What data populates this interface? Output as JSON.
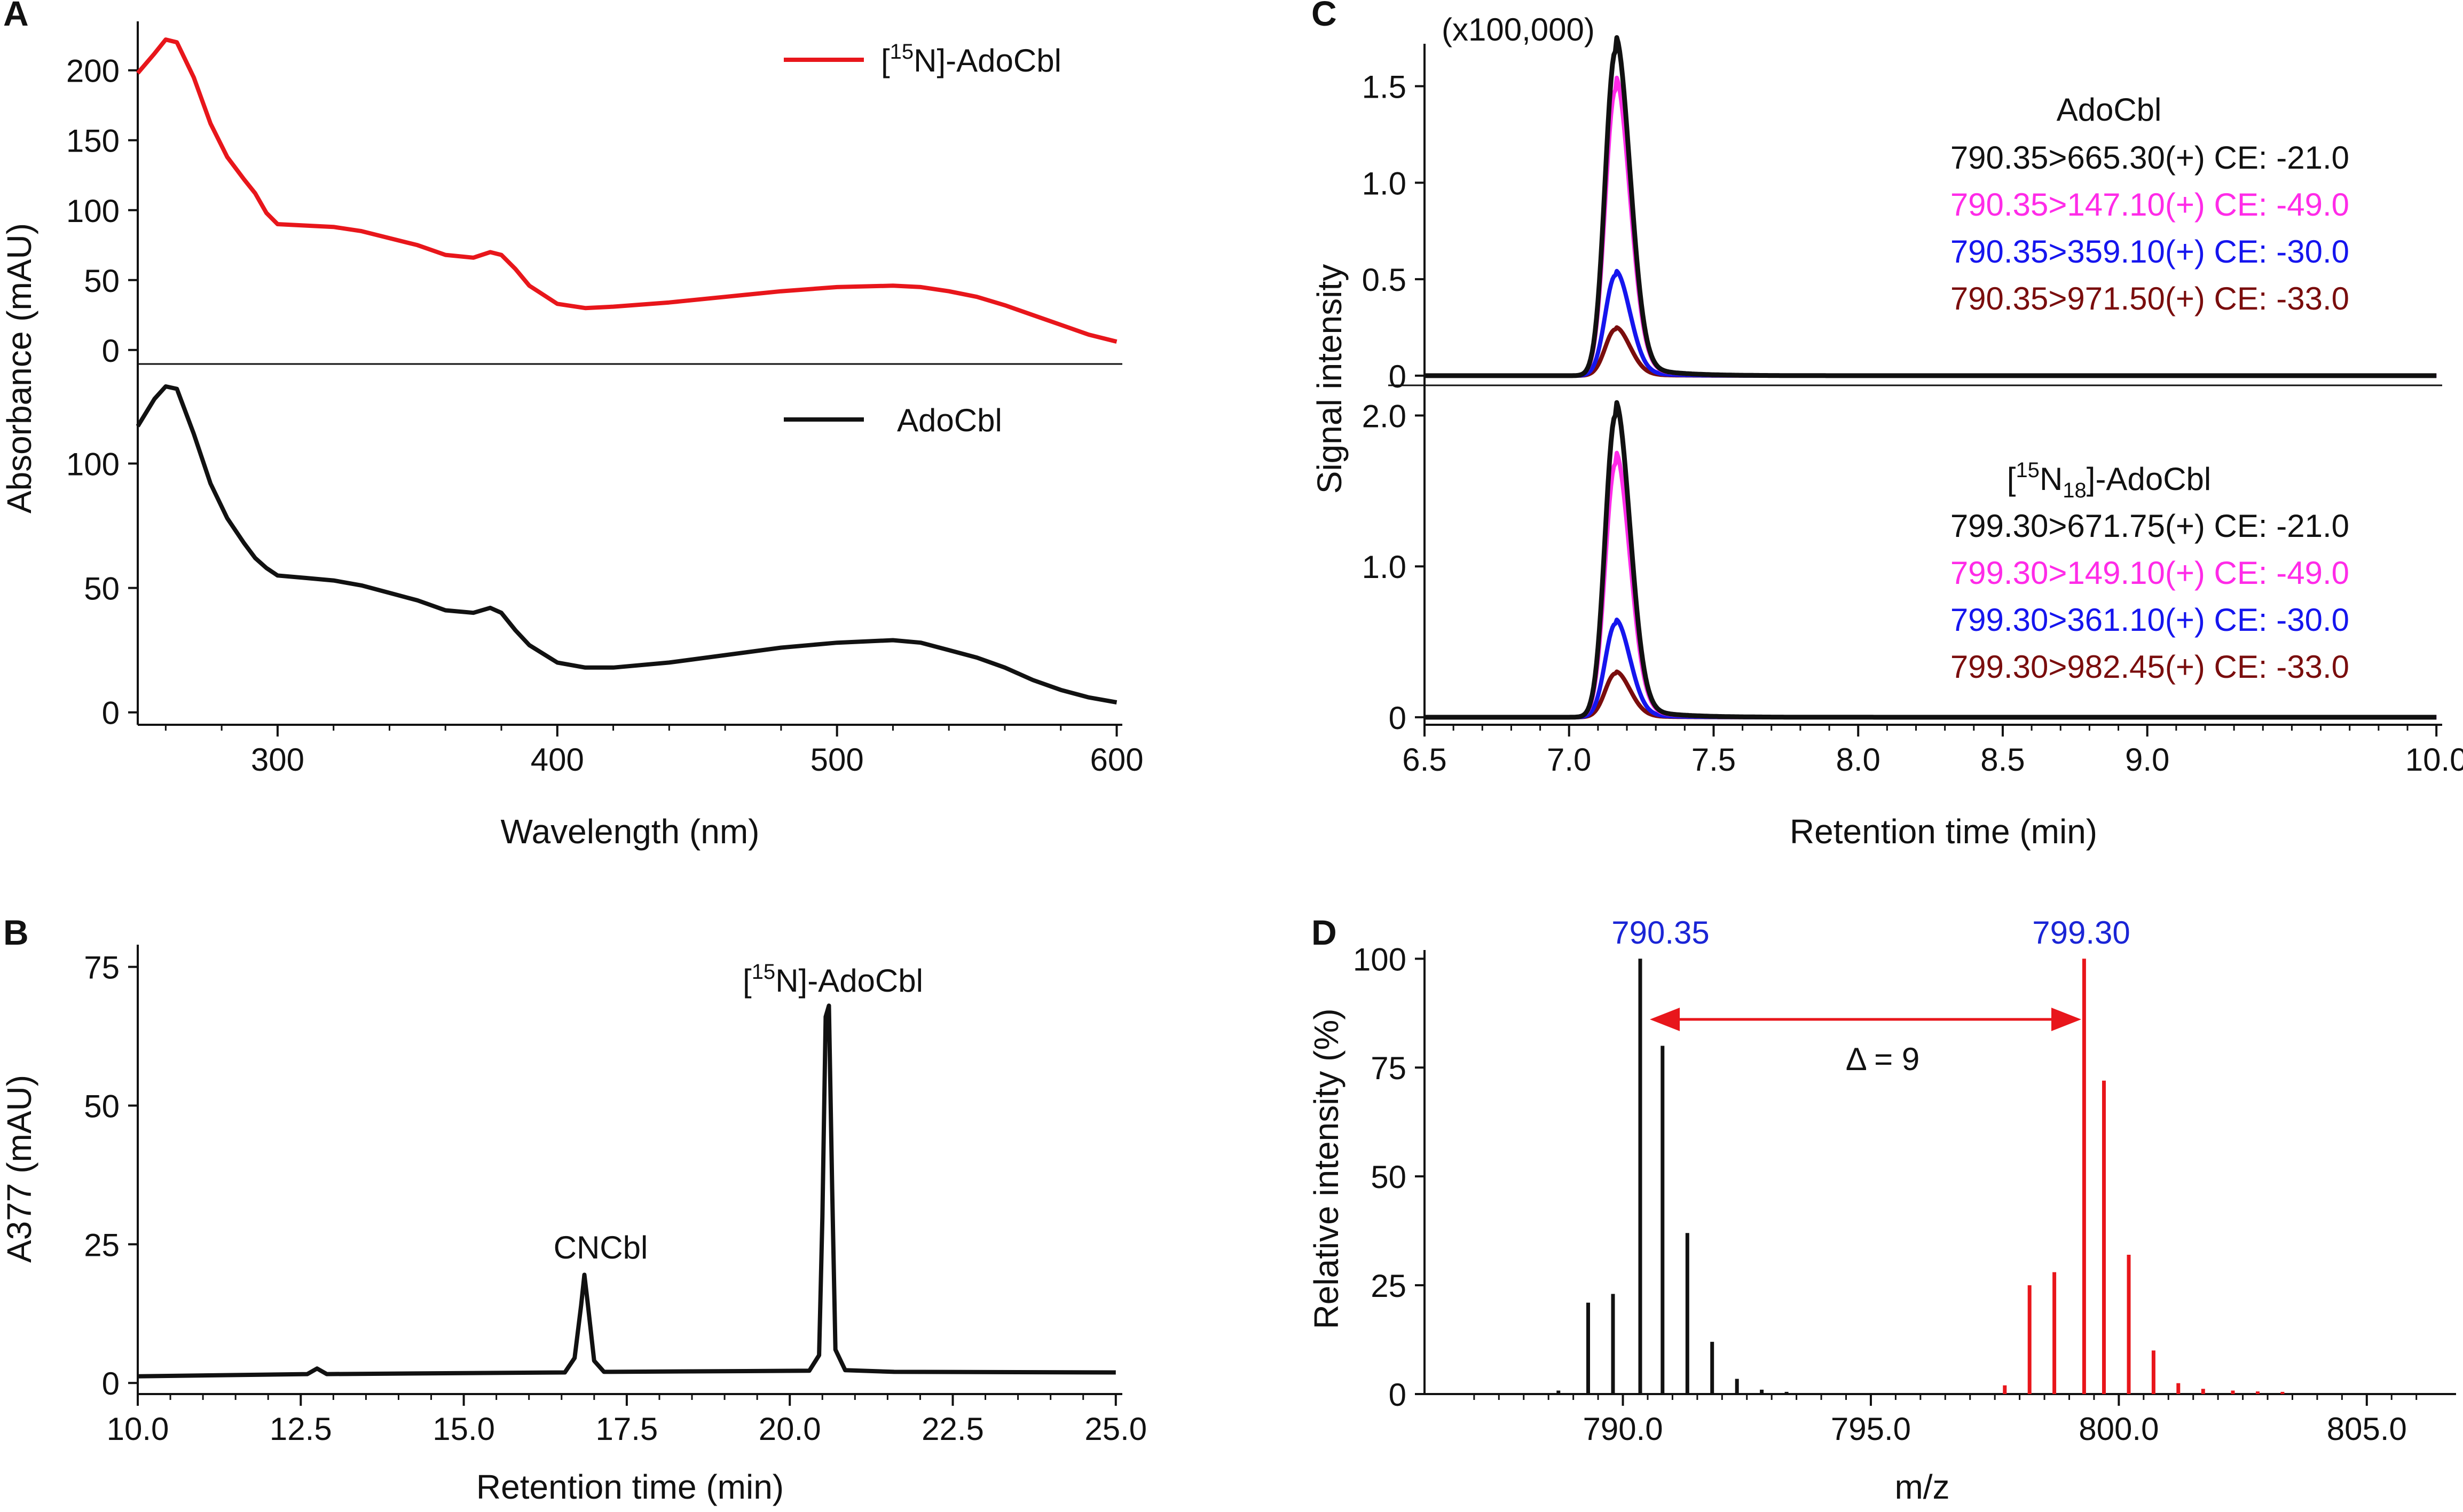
{
  "figure": {
    "colors": {
      "black": "#111111",
      "red": "#e8161b",
      "magenta": "#ff2be8",
      "blue": "#1515ee",
      "darkred": "#7a0d0d",
      "annotation_blue": "#1a25d6"
    }
  },
  "chart_data": [
    {
      "panel": "A",
      "type": "line",
      "xlabel": "Wavelength (nm)",
      "ylabel": "Absorbance (mAU)",
      "xlim": [
        250,
        602
      ],
      "x_ticks": [
        "300",
        "400",
        "500",
        "600"
      ],
      "subplots": [
        {
          "name": "[15N]-AdoCbl",
          "legend_label": "[15N]-AdoCbl",
          "color": "red",
          "ylim": [
            -10,
            235
          ],
          "y_ticks": [
            "0",
            "50",
            "100",
            "150",
            "200"
          ],
          "x": [
            250,
            256,
            260,
            264,
            270,
            276,
            282,
            288,
            292,
            296,
            300,
            310,
            320,
            330,
            340,
            350,
            360,
            370,
            376,
            380,
            385,
            390,
            400,
            410,
            420,
            440,
            460,
            480,
            500,
            520,
            530,
            540,
            550,
            560,
            570,
            580,
            590,
            600
          ],
          "values": [
            198,
            212,
            222,
            220,
            195,
            162,
            138,
            122,
            112,
            98,
            90,
            89,
            88,
            85,
            80,
            75,
            68,
            66,
            70,
            68,
            58,
            46,
            33,
            30,
            31,
            34,
            38,
            42,
            45,
            46,
            45,
            42,
            38,
            32,
            25,
            18,
            11,
            6
          ]
        },
        {
          "name": "AdoCbl",
          "legend_label": "AdoCbl",
          "color": "black",
          "ylim": [
            -5,
            140
          ],
          "y_ticks": [
            "0",
            "50",
            "100"
          ],
          "x": [
            250,
            256,
            260,
            264,
            270,
            276,
            282,
            288,
            292,
            296,
            300,
            310,
            320,
            330,
            340,
            350,
            360,
            370,
            376,
            380,
            385,
            390,
            400,
            410,
            420,
            440,
            460,
            480,
            500,
            520,
            530,
            540,
            550,
            560,
            570,
            580,
            590,
            600
          ],
          "values": [
            115,
            126,
            131,
            130,
            112,
            92,
            78,
            68,
            62,
            58,
            55,
            54,
            53,
            51,
            48,
            45,
            41,
            40,
            42,
            40,
            33,
            27,
            20,
            18,
            18,
            20,
            23,
            26,
            28,
            29,
            28,
            25,
            22,
            18,
            13,
            9,
            6,
            4
          ]
        }
      ]
    },
    {
      "panel": "B",
      "type": "line",
      "xlabel": "Retention time (min)",
      "ylabel": "A377 (mAU)",
      "xlim": [
        10,
        25.1
      ],
      "ylim": [
        -2,
        79
      ],
      "x_ticks": [
        "10.0",
        "12.5",
        "15.0",
        "17.5",
        "20.0",
        "22.5",
        "25.0"
      ],
      "y_ticks": [
        "0",
        "25",
        "50",
        "75"
      ],
      "annotations": [
        "CNCbl",
        "[15N]-AdoCbl"
      ],
      "x": [
        10.0,
        12.6,
        12.75,
        12.9,
        16.55,
        16.7,
        16.8,
        16.85,
        16.9,
        17.0,
        17.15,
        20.3,
        20.45,
        20.5,
        20.55,
        20.6,
        20.65,
        20.7,
        20.85,
        21.6,
        25.0
      ],
      "values": [
        1.2,
        1.6,
        2.6,
        1.6,
        1.9,
        4.5,
        14.0,
        19.5,
        14.5,
        4.0,
        2.0,
        2.2,
        5.0,
        30.0,
        66.0,
        68.0,
        35.0,
        6.0,
        2.3,
        2.0,
        1.9
      ]
    },
    {
      "panel": "C",
      "type": "line",
      "xlabel": "Retention time (min)",
      "ylabel": "Signal intensity",
      "scale_label": "(x100,000)",
      "xlim": [
        6.5,
        10.02
      ],
      "x_ticks": [
        "6.5",
        "7.0",
        "7.5",
        "8.0",
        "8.5",
        "9.0",
        "10.0"
      ],
      "peak_rt": 7.16,
      "subplots": [
        {
          "title": "AdoCbl",
          "ylim": [
            -0.05,
            1.72
          ],
          "y_ticks": [
            "0",
            "0.5",
            "1.0",
            "1.5"
          ],
          "series": [
            {
              "label": "790.35>665.30(+) CE: -21.0",
              "color": "black",
              "peak": 1.68
            },
            {
              "label": "790.35>147.10(+) CE: -49.0",
              "color": "magenta",
              "peak": 1.48
            },
            {
              "label": "790.35>359.10(+) CE: -30.0",
              "color": "blue",
              "peak": 0.52
            },
            {
              "label": "790.35>971.50(+) CE: -33.0",
              "color": "darkred",
              "peak": 0.24
            }
          ]
        },
        {
          "title": "[15N18]-AdoCbl",
          "ylim": [
            -0.05,
            2.2
          ],
          "y_ticks": [
            "0",
            "1.0",
            "2.0"
          ],
          "series": [
            {
              "label": "799.30>671.75(+) CE: -21.0",
              "color": "black",
              "peak": 2.0
            },
            {
              "label": "799.30>149.10(+) CE: -49.0",
              "color": "magenta",
              "peak": 1.68
            },
            {
              "label": "799.30>361.10(+) CE: -30.0",
              "color": "blue",
              "peak": 0.62
            },
            {
              "label": "799.30>982.45(+) CE: -33.0",
              "color": "darkred",
              "peak": 0.29
            }
          ]
        }
      ]
    },
    {
      "panel": "D",
      "type": "bar",
      "xlabel": "m/z",
      "ylabel": "Relative intensity (%)",
      "xlim": [
        786.0,
        806.8
      ],
      "ylim": [
        0,
        102
      ],
      "x_ticks": [
        "790.0",
        "795.0",
        "800.0",
        "805.0"
      ],
      "y_ticks": [
        "0",
        "25",
        "50",
        "75",
        "100"
      ],
      "delta_label": "Δ = 9",
      "peak_labels": [
        "790.35",
        "799.30"
      ],
      "series": [
        {
          "name": "AdoCbl",
          "color": "black",
          "mz": [
            789.3,
            789.8,
            790.35,
            790.8,
            791.3,
            791.8,
            792.3,
            792.8,
            788.7,
            793.3
          ],
          "values": [
            21,
            23,
            100,
            80,
            37,
            12,
            3.5,
            1,
            0.8,
            0.5
          ]
        },
        {
          "name": "[15N]-AdoCbl",
          "color": "red",
          "mz": [
            797.7,
            798.2,
            798.7,
            799.3,
            799.7,
            800.2,
            800.7,
            801.2,
            801.7,
            802.3,
            802.8,
            803.3
          ],
          "values": [
            2,
            25,
            28,
            100,
            72,
            32,
            10,
            2.5,
            1.2,
            0.8,
            0.6,
            0.5
          ]
        }
      ]
    }
  ],
  "panels": {
    "A": {
      "letter": "A",
      "xlabel": "Wavelength (nm)",
      "ylabel": "Absorbance (mAU)",
      "x_ticks": [
        "300",
        "400",
        "500",
        "600"
      ],
      "top_ticks": [
        "0",
        "50",
        "100",
        "150",
        "200"
      ],
      "bottom_ticks": [
        "0",
        "50",
        "100"
      ],
      "legend_top_sup": "15",
      "legend_top_prefix": "[",
      "legend_top_suffix": "N]-AdoCbl",
      "legend_bottom": "AdoCbl"
    },
    "B": {
      "letter": "B",
      "xlabel": "Retention time (min)",
      "ylabel": "A377 (mAU)",
      "x_ticks": [
        "10.0",
        "12.5",
        "15.0",
        "17.5",
        "20.0",
        "22.5",
        "25.0"
      ],
      "y_ticks": [
        "0",
        "25",
        "50",
        "75"
      ],
      "ann_cncbl": "CNCbl",
      "ann_prefix": "[",
      "ann_sup": "15",
      "ann_suffix": "N]-AdoCbl"
    },
    "C": {
      "letter": "C",
      "scale": "(x100,000)",
      "xlabel": "Retention time (min)",
      "ylabel": "Signal intensity",
      "x_ticks": [
        "6.5",
        "7.0",
        "7.5",
        "8.0",
        "8.5",
        "9.0",
        "10.0"
      ],
      "top_ticks": [
        "0",
        "0.5",
        "1.0",
        "1.5"
      ],
      "bottom_ticks": [
        "0",
        "1.0",
        "2.0"
      ],
      "top_title": "AdoCbl",
      "bottom_title_prefix": "[",
      "bottom_title_sup": "15",
      "bottom_title_mid": "N",
      "bottom_title_sub": "18",
      "bottom_title_suffix": "]-AdoCbl",
      "top_legend": [
        "790.35>665.30(+) CE: -21.0",
        "790.35>147.10(+) CE: -49.0",
        "790.35>359.10(+) CE: -30.0",
        "790.35>971.50(+) CE: -33.0"
      ],
      "bottom_legend": [
        "799.30>671.75(+) CE: -21.0",
        "799.30>149.10(+) CE: -49.0",
        "799.30>361.10(+) CE: -30.0",
        "799.30>982.45(+) CE: -33.0"
      ]
    },
    "D": {
      "letter": "D",
      "xlabel": "m/z",
      "ylabel": "Relative intensity (%)",
      "x_ticks": [
        "790.0",
        "795.0",
        "800.0",
        "805.0"
      ],
      "y_ticks": [
        "0",
        "25",
        "50",
        "75",
        "100"
      ],
      "peak1": "790.35",
      "peak2": "799.30",
      "delta": "Δ = 9"
    }
  }
}
